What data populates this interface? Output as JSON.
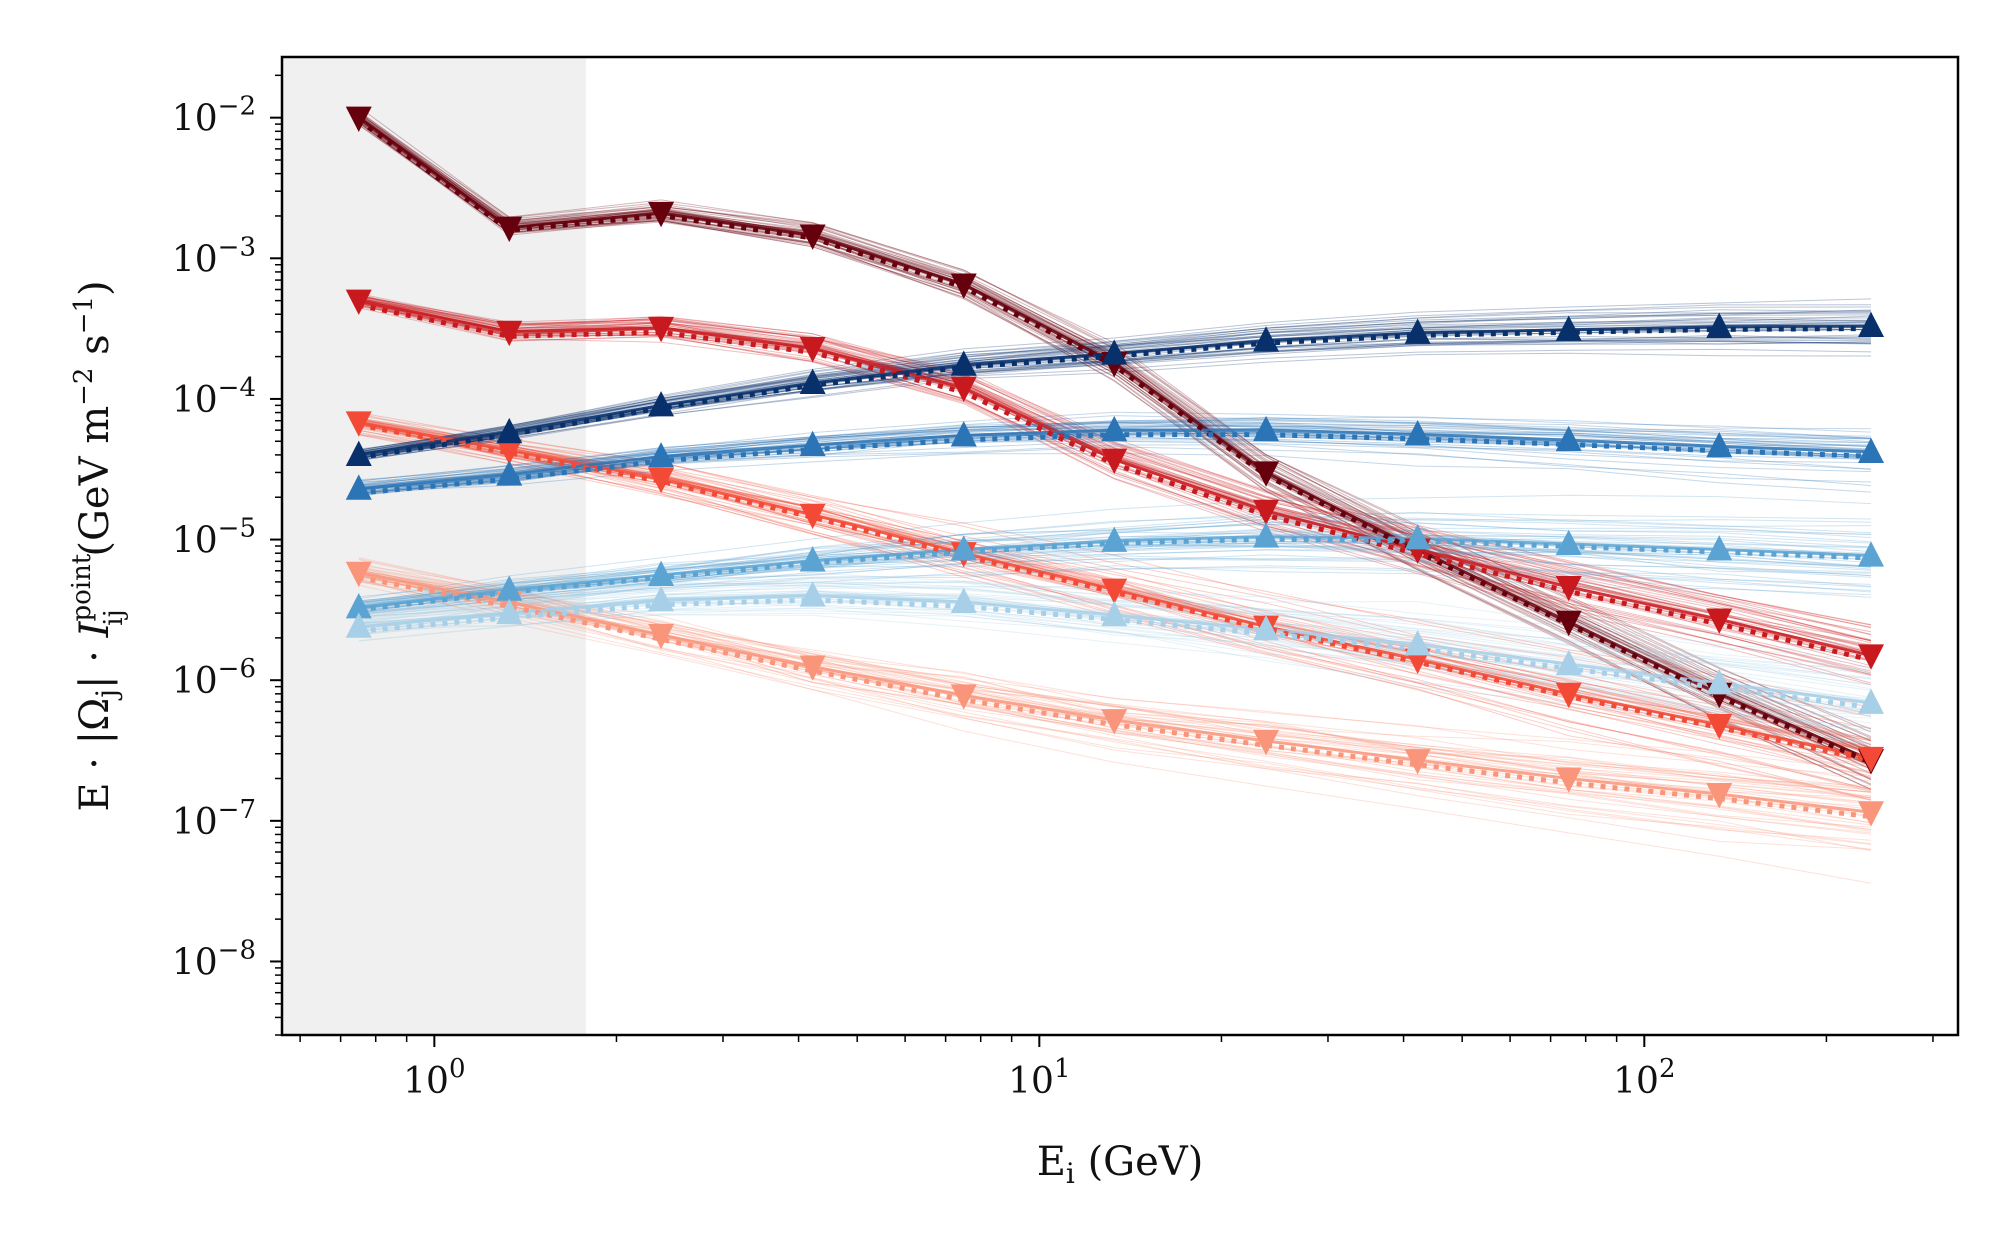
{
  "chart_data": {
    "type": "line",
    "xscale": "log",
    "yscale": "log",
    "xlim": [
      0.56,
      330
    ],
    "ylim": [
      3e-09,
      0.027
    ],
    "xlabel": {
      "base": "E",
      "sub": "i",
      "unit": " (GeV)"
    },
    "ylabel": {
      "pre": "E · |Ω",
      "sub1": "j",
      "mid": "| · ",
      "sym": "I",
      "sup": "point",
      "sub2": "ij",
      "unit": " (GeV m",
      "exp1": "−2",
      "unit2": " s",
      "exp2": "−1",
      "close": ")"
    },
    "x_ticks": [
      {
        "value": 1,
        "label": "10",
        "exp": "0"
      },
      {
        "value": 10,
        "label": "10",
        "exp": "1"
      },
      {
        "value": 100,
        "label": "10",
        "exp": "2"
      }
    ],
    "y_ticks": [
      {
        "value": 0.01,
        "label": "10",
        "exp": "−2"
      },
      {
        "value": 0.001,
        "label": "10",
        "exp": "−3"
      },
      {
        "value": 0.0001,
        "label": "10",
        "exp": "−4"
      },
      {
        "value": 1e-05,
        "label": "10",
        "exp": "−5"
      },
      {
        "value": 1e-06,
        "label": "10",
        "exp": "−6"
      },
      {
        "value": 1e-07,
        "label": "10",
        "exp": "−7"
      },
      {
        "value": 1e-08,
        "label": "10",
        "exp": "−8"
      }
    ],
    "shaded_region": {
      "x0": 0.56,
      "x1": 1.78,
      "color": "#f0f0f0"
    },
    "x": [
      0.75,
      1.33,
      2.37,
      4.22,
      7.5,
      13.3,
      23.7,
      42.2,
      75,
      133,
      237
    ],
    "series": [
      {
        "marker": "down",
        "color": "#67000d",
        "values": [
          0.01,
          0.00165,
          0.0021,
          0.00145,
          0.00065,
          0.00018,
          3e-05,
          8.5e-06,
          2.6e-06,
          8e-07,
          2.7e-07
        ],
        "spread": 0.08
      },
      {
        "marker": "down",
        "color": "#c8191e",
        "values": [
          0.0005,
          0.0003,
          0.00032,
          0.00023,
          0.00012,
          3.7e-05,
          1.6e-05,
          8.5e-06,
          4.6e-06,
          2.7e-06,
          1.5e-06
        ],
        "spread": 0.09
      },
      {
        "marker": "down",
        "color": "#f24a36",
        "values": [
          6.8e-05,
          4.3e-05,
          2.7e-05,
          1.5e-05,
          8e-06,
          4.4e-06,
          2.4e-06,
          1.4e-06,
          8e-07,
          4.8e-07,
          2.8e-07
        ],
        "spread": 0.12
      },
      {
        "marker": "down",
        "color": "#f9957a",
        "values": [
          5.8e-06,
          3.6e-06,
          2.1e-06,
          1.25e-06,
          7.8e-07,
          5.2e-07,
          3.7e-07,
          2.7e-07,
          2e-07,
          1.55e-07,
          1.15e-07
        ],
        "spread": 0.16
      },
      {
        "marker": "up",
        "color": "#08306b",
        "values": [
          4e-05,
          5.8e-05,
          9e-05,
          0.00013,
          0.000175,
          0.00021,
          0.00026,
          0.000295,
          0.00031,
          0.000325,
          0.00033
        ],
        "spread": 0.06
      },
      {
        "marker": "up",
        "color": "#2b74b5",
        "values": [
          2.3e-05,
          2.9e-05,
          3.9e-05,
          4.7e-05,
          5.5e-05,
          6e-05,
          6e-05,
          5.6e-05,
          5.1e-05,
          4.6e-05,
          4.2e-05
        ],
        "spread": 0.08
      },
      {
        "marker": "up",
        "color": "#5ba3d2",
        "values": [
          3.3e-06,
          4.4e-06,
          5.6e-06,
          7.1e-06,
          8.5e-06,
          9.8e-06,
          1.05e-05,
          1.02e-05,
          9.3e-06,
          8.5e-06,
          7.7e-06
        ],
        "spread": 0.12
      },
      {
        "marker": "up",
        "color": "#a7cfe7",
        "values": [
          2.4e-06,
          3e-06,
          3.7e-06,
          4e-06,
          3.6e-06,
          2.9e-06,
          2.3e-06,
          1.8e-06,
          1.3e-06,
          9.5e-07,
          6.9e-07
        ],
        "spread": 0.15
      }
    ]
  }
}
